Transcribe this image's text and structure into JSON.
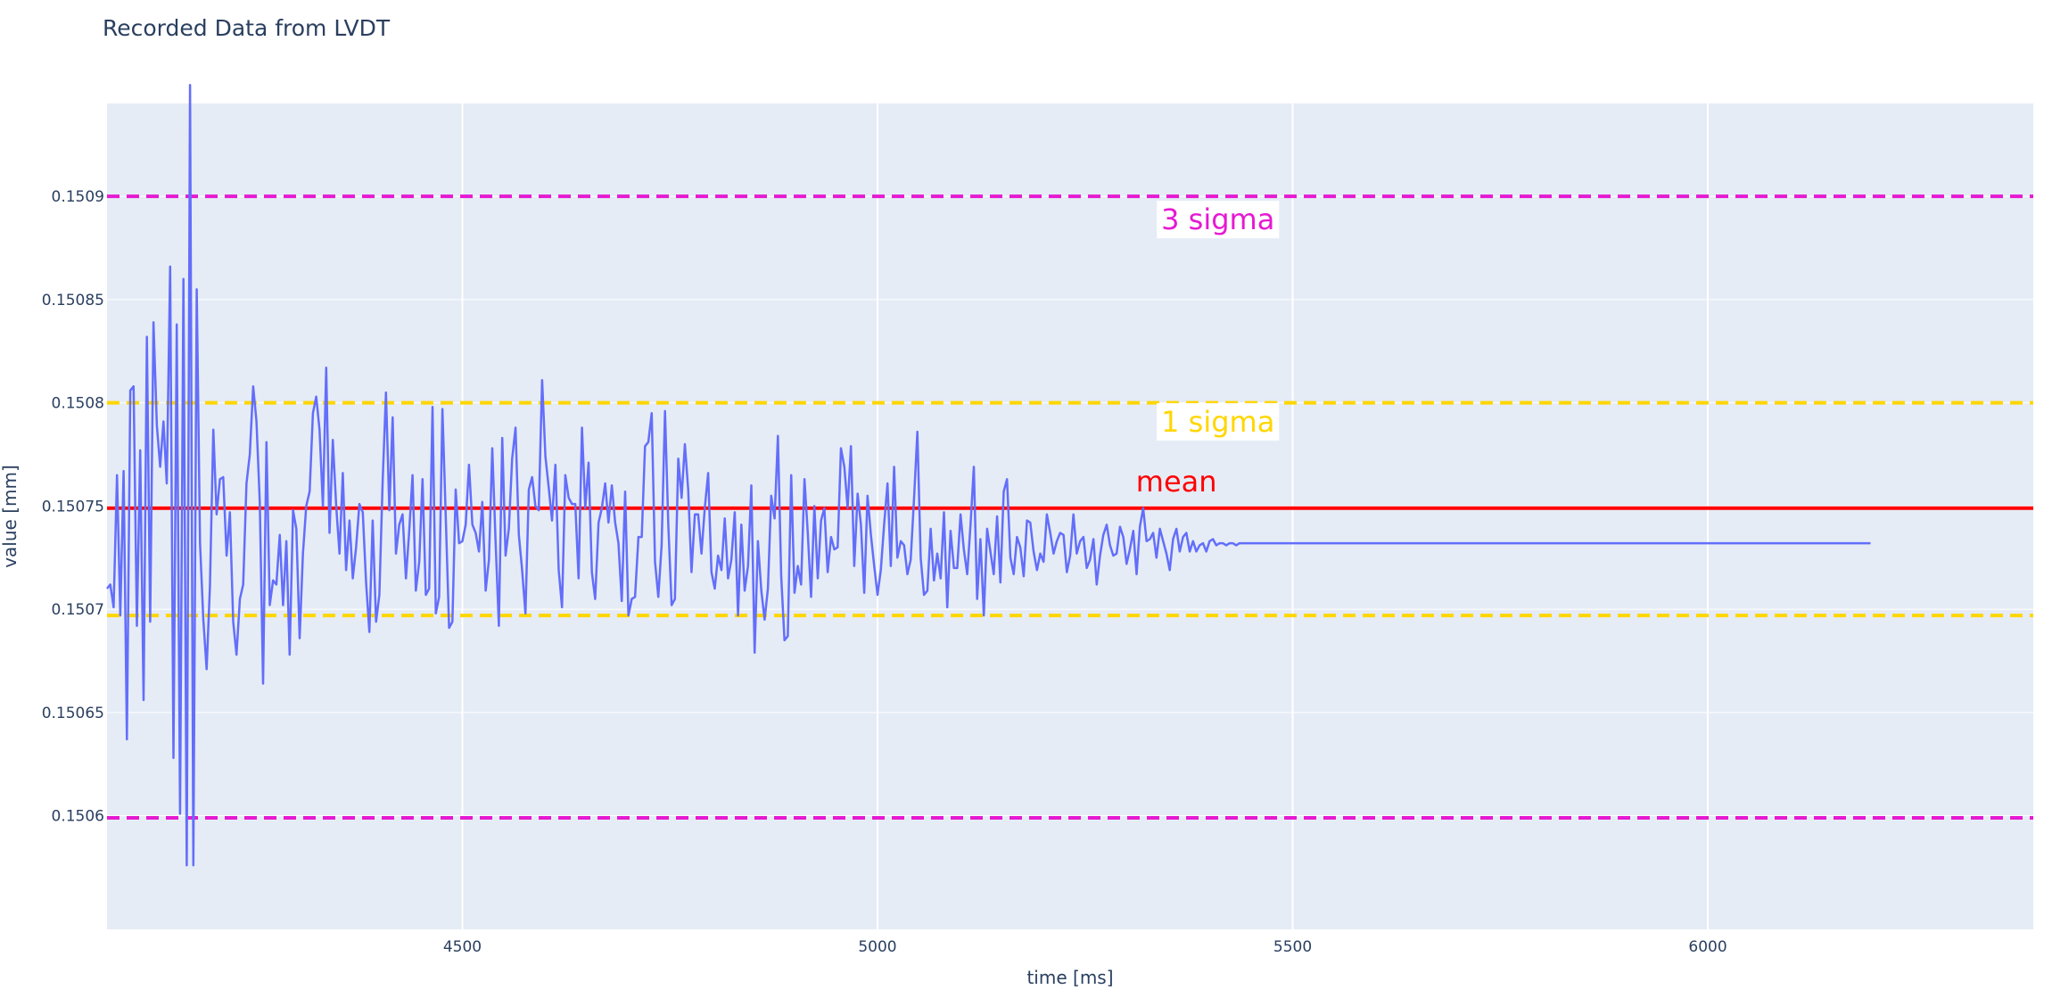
{
  "chart_data": {
    "type": "line",
    "title": "Recorded Data from LVDT",
    "xlabel": "time [ms]",
    "ylabel": "value [mm]",
    "xlim": [
      4072,
      6392
    ],
    "ylim": [
      0.150545,
      0.150945
    ],
    "x_ticks": [
      4500,
      5000,
      5500,
      6000
    ],
    "x_tick_labels": [
      "4500",
      "5000",
      "5500",
      "6000"
    ],
    "y_ticks": [
      0.1506,
      0.15065,
      0.1507,
      0.15075,
      0.1508,
      0.15085,
      0.1509
    ],
    "y_tick_labels": [
      "0.1506",
      "0.15065",
      "0.1507",
      "0.15075",
      "0.1508",
      "0.15085",
      "0.1509"
    ],
    "grid": true,
    "series": [
      {
        "color": "#636efa",
        "x_start": 4072,
        "x_step": 4,
        "values": [
          0.15071,
          0.150712,
          0.150701,
          0.150765,
          0.150697,
          0.150767,
          0.150637,
          0.150806,
          0.150808,
          0.150692,
          0.150777,
          0.150656,
          0.150832,
          0.150694,
          0.150839,
          0.150789,
          0.150769,
          0.150791,
          0.150761,
          0.150866,
          0.150628,
          0.150838,
          0.150601,
          0.15086,
          0.150576,
          0.150954,
          0.150576,
          0.150855,
          0.150732,
          0.150695,
          0.150671,
          0.150711,
          0.150787,
          0.150746,
          0.150763,
          0.150764,
          0.150726,
          0.150747,
          0.150694,
          0.150678,
          0.150705,
          0.150712,
          0.150761,
          0.150775,
          0.150808,
          0.150791,
          0.150752,
          0.150664,
          0.150781,
          0.150702,
          0.150714,
          0.150712,
          0.150736,
          0.150702,
          0.150733,
          0.150678,
          0.150748,
          0.150739,
          0.150686,
          0.150727,
          0.15075,
          0.150757,
          0.150795,
          0.150803,
          0.150787,
          0.15075,
          0.150817,
          0.150737,
          0.150782,
          0.15075,
          0.150727,
          0.150766,
          0.150719,
          0.150743,
          0.150715,
          0.15073,
          0.150751,
          0.150747,
          0.150713,
          0.150689,
          0.150743,
          0.150694,
          0.150707,
          0.150762,
          0.150805,
          0.150748,
          0.150793,
          0.150727,
          0.150741,
          0.150746,
          0.150715,
          0.150738,
          0.150765,
          0.150709,
          0.150723,
          0.150763,
          0.150707,
          0.15071,
          0.150798,
          0.150698,
          0.150706,
          0.150797,
          0.150744,
          0.150691,
          0.150694,
          0.150758,
          0.150732,
          0.150733,
          0.150741,
          0.15077,
          0.150741,
          0.150737,
          0.150728,
          0.150752,
          0.150709,
          0.150724,
          0.150778,
          0.150733,
          0.150692,
          0.150783,
          0.150726,
          0.150739,
          0.150773,
          0.150788,
          0.150736,
          0.150719,
          0.150698,
          0.150758,
          0.150764,
          0.15075,
          0.150748,
          0.150811,
          0.150774,
          0.150759,
          0.150743,
          0.15077,
          0.150719,
          0.150701,
          0.150765,
          0.150754,
          0.150751,
          0.150751,
          0.150715,
          0.150788,
          0.150749,
          0.150771,
          0.150718,
          0.150705,
          0.150742,
          0.150749,
          0.150761,
          0.150742,
          0.15076,
          0.150742,
          0.150732,
          0.150704,
          0.150757,
          0.150697,
          0.150705,
          0.150706,
          0.150735,
          0.150735,
          0.150779,
          0.150781,
          0.150795,
          0.150723,
          0.150706,
          0.150731,
          0.150796,
          0.150741,
          0.150702,
          0.150705,
          0.150773,
          0.150754,
          0.15078,
          0.150758,
          0.150718,
          0.150746,
          0.150746,
          0.150727,
          0.150749,
          0.150766,
          0.150718,
          0.15071,
          0.150726,
          0.150719,
          0.150744,
          0.150715,
          0.150724,
          0.150747,
          0.150697,
          0.150741,
          0.150709,
          0.150721,
          0.15076,
          0.150679,
          0.150733,
          0.150709,
          0.150695,
          0.15071,
          0.150755,
          0.150744,
          0.150784,
          0.150716,
          0.150685,
          0.150687,
          0.150765,
          0.150708,
          0.150721,
          0.150712,
          0.150763,
          0.150737,
          0.150706,
          0.15075,
          0.150715,
          0.150743,
          0.150749,
          0.150718,
          0.150735,
          0.150729,
          0.15073,
          0.150778,
          0.150769,
          0.150749,
          0.150779,
          0.150721,
          0.150756,
          0.150741,
          0.150708,
          0.150755,
          0.150736,
          0.150721,
          0.150707,
          0.150719,
          0.150741,
          0.150761,
          0.150721,
          0.150769,
          0.150725,
          0.150733,
          0.150731,
          0.150717,
          0.150724,
          0.150754,
          0.150786,
          0.150725,
          0.150707,
          0.150709,
          0.150739,
          0.150714,
          0.150727,
          0.150715,
          0.150747,
          0.150701,
          0.150738,
          0.15072,
          0.15072,
          0.150746,
          0.150729,
          0.150717,
          0.150741,
          0.150769,
          0.150705,
          0.150734,
          0.150697,
          0.150739,
          0.150728,
          0.150717,
          0.150745,
          0.150713,
          0.150757,
          0.150763,
          0.150725,
          0.150717,
          0.150735,
          0.15073,
          0.150716,
          0.150743,
          0.150742,
          0.150728,
          0.150719,
          0.150727,
          0.150723,
          0.150746,
          0.150737,
          0.150727,
          0.150733,
          0.150737,
          0.150736,
          0.150718,
          0.150726,
          0.150746,
          0.150727,
          0.150733,
          0.150735,
          0.15072,
          0.150724,
          0.150734,
          0.150712,
          0.150726,
          0.150736,
          0.150741,
          0.150731,
          0.150726,
          0.150727,
          0.15074,
          0.150735,
          0.150722,
          0.150729,
          0.150738,
          0.150717,
          0.15074,
          0.150749,
          0.150733,
          0.150734,
          0.150737,
          0.150725,
          0.150739,
          0.150733,
          0.150727,
          0.150719,
          0.150734,
          0.150739,
          0.150728,
          0.150735,
          0.150737,
          0.150728,
          0.150733,
          0.150728,
          0.150731,
          0.150732,
          0.150728,
          0.150733,
          0.150734,
          0.150731,
          0.150732,
          0.150732,
          0.150731,
          0.150732,
          0.150732,
          0.150731,
          0.150732,
          0.150732,
          0.150732,
          0.150732,
          0.150732,
          0.150732,
          0.150732,
          0.150732,
          0.150732,
          0.150732,
          0.150732,
          0.150732,
          0.150732,
          0.150732,
          0.150732,
          0.150732,
          0.150732,
          0.150732,
          0.150732,
          0.150732,
          0.150732,
          0.150732,
          0.150732,
          0.150732,
          0.150732,
          0.150732,
          0.150732,
          0.150732,
          0.150732,
          0.150732,
          0.150732,
          0.150732,
          0.150732,
          0.150732,
          0.150732,
          0.150732,
          0.150732,
          0.150732,
          0.150732,
          0.150732,
          0.150732,
          0.150732,
          0.150732,
          0.150732,
          0.150732,
          0.150732,
          0.150732,
          0.150732,
          0.150732,
          0.150732,
          0.150732,
          0.150732,
          0.150732,
          0.150732,
          0.150732,
          0.150732,
          0.150732,
          0.150732,
          0.150732,
          0.150732,
          0.150732,
          0.150732,
          0.150732,
          0.150732,
          0.150732,
          0.150732,
          0.150732,
          0.150732,
          0.150732,
          0.150732,
          0.150732,
          0.150732,
          0.150732,
          0.150732,
          0.150732,
          0.150732,
          0.150732,
          0.150732,
          0.150732,
          0.150732,
          0.150732,
          0.150732,
          0.150732,
          0.150732,
          0.150732,
          0.150732,
          0.150732,
          0.150732,
          0.150732,
          0.150732,
          0.150732,
          0.150732,
          0.150732,
          0.150732,
          0.150732,
          0.150732,
          0.150732,
          0.150732,
          0.150732,
          0.150732,
          0.150732,
          0.150732,
          0.150732,
          0.150732,
          0.150732,
          0.150732,
          0.150732,
          0.150732,
          0.150732,
          0.150732,
          0.150732,
          0.150732,
          0.150732,
          0.150732,
          0.150732,
          0.150732,
          0.150732,
          0.150732,
          0.150732,
          0.150732,
          0.150732,
          0.150732,
          0.150732,
          0.150732,
          0.150732,
          0.150732,
          0.150732,
          0.150732,
          0.150732,
          0.150732,
          0.150732,
          0.150732,
          0.150732,
          0.150732,
          0.150732,
          0.150732,
          0.150732,
          0.150732,
          0.150732,
          0.150732,
          0.150732,
          0.150732,
          0.150732,
          0.150732,
          0.150732,
          0.150732,
          0.150732,
          0.150732,
          0.150732,
          0.150732,
          0.150732,
          0.150732,
          0.150732,
          0.150732,
          0.150732,
          0.150732,
          0.150732,
          0.150732,
          0.150732,
          0.150732,
          0.150732,
          0.150732,
          0.150732,
          0.150732,
          0.150732,
          0.150732,
          0.150732,
          0.150732,
          0.150732,
          0.150732,
          0.150732,
          0.150732,
          0.150732,
          0.150732,
          0.150732,
          0.150732,
          0.150732,
          0.150732,
          0.150732,
          0.150732,
          0.150732,
          0.150732,
          0.150732,
          0.150732,
          0.150732,
          0.150732,
          0.150732,
          0.150732,
          0.150732,
          0.150732,
          0.150732
        ]
      }
    ],
    "hlines": [
      {
        "y": 0.150749,
        "color": "#ff0000",
        "style": "solid",
        "width": 4
      },
      {
        "y": 0.1508,
        "color": "#ffd600",
        "style": "dash",
        "width": 4
      },
      {
        "y": 0.150697,
        "color": "#ffd600",
        "style": "dash",
        "width": 4
      },
      {
        "y": 0.1509,
        "color": "#e619d2",
        "style": "dash",
        "width": 4
      },
      {
        "y": 0.150599,
        "color": "#e619d2",
        "style": "dash",
        "width": 4
      }
    ],
    "annotations": [
      {
        "text": "3 sigma",
        "x": 5410,
        "y": 0.150884,
        "color": "#e619d2",
        "bgcolor": "#ffffff"
      },
      {
        "text": "1 sigma",
        "x": 5410,
        "y": 0.150786,
        "color": "#ffd600",
        "bgcolor": "#ffffff"
      },
      {
        "text": "mean",
        "x": 5360,
        "y": 0.150757,
        "color": "#ff0000",
        "bgcolor": "none"
      }
    ]
  }
}
